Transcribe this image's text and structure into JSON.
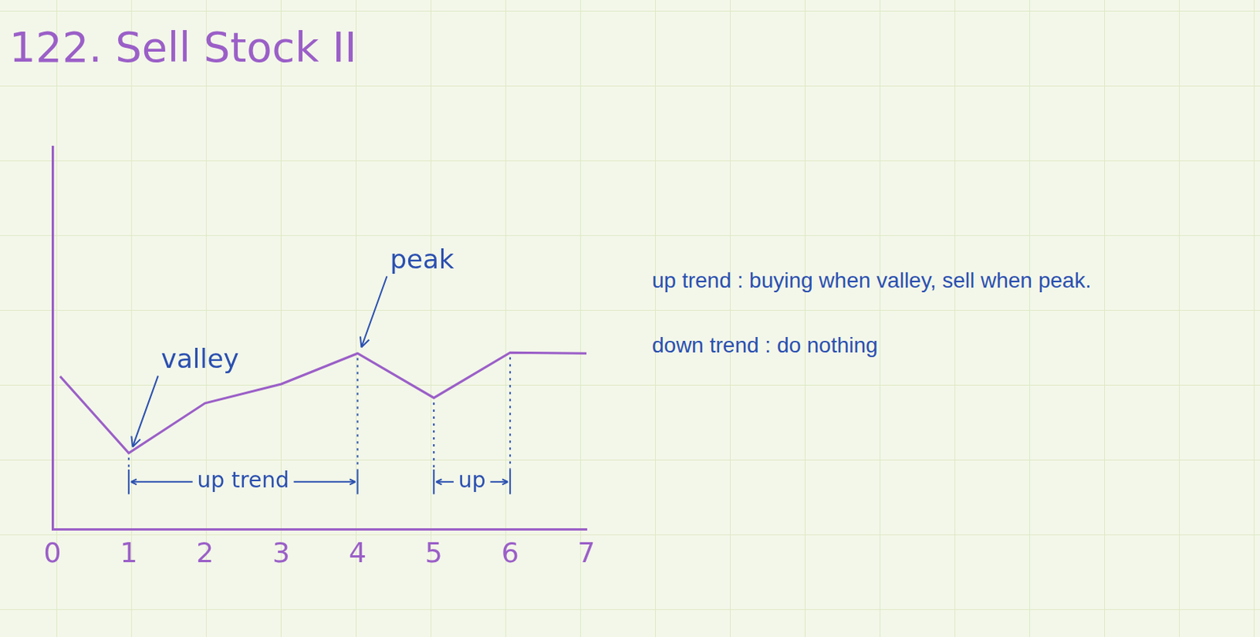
{
  "chart_data": {
    "type": "line",
    "title": "122. Sell Stock II",
    "x": [
      0.1,
      1,
      2,
      3,
      4,
      5,
      6,
      7
    ],
    "values": [
      2,
      1,
      1.65,
      1.9,
      2.3,
      1.72,
      2.31,
      2.3
    ],
    "color": "#9b5fc8",
    "xlim": [
      0,
      7
    ],
    "xticks": [
      0,
      1,
      2,
      3,
      4,
      5,
      6,
      7
    ],
    "ylim": [
      0,
      5
    ],
    "tick_labels": "x",
    "grid": false,
    "annotations": [
      {
        "text": "valley",
        "x": 1,
        "y": 1
      },
      {
        "text": "peak",
        "x": 4,
        "y": 2.3
      },
      {
        "text": "up trend",
        "from": 1,
        "to": 4
      },
      {
        "text": "up",
        "from": 5,
        "to": 6
      }
    ]
  },
  "notes": [
    "up trend : buying when valley, sell when peak.",
    "down trend : do nothing"
  ]
}
